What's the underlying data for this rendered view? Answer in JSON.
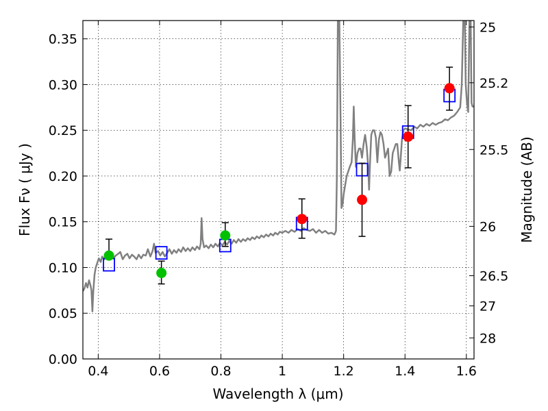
{
  "chart_data": {
    "type": "scatter",
    "xlabel": "Wavelength  λ (μm)",
    "ylabel": "Flux  Fν  ( μJy )",
    "y2label": "Magnitude (AB)",
    "xlim": [
      0.35,
      1.625
    ],
    "ylim": [
      0.0,
      0.37
    ],
    "grid": true,
    "x_ticks": [
      0.4,
      0.6,
      0.8,
      1.0,
      1.2,
      1.4,
      1.6
    ],
    "x_tick_labels": [
      "0.4",
      "0.6",
      "0.8",
      "1",
      "1.2",
      "1.4",
      "1.6"
    ],
    "y_ticks": [
      0.0,
      0.05,
      0.1,
      0.15,
      0.2,
      0.25,
      0.3,
      0.35
    ],
    "y_tick_labels": [
      "0.00",
      "0.05",
      "0.10",
      "0.15",
      "0.20",
      "0.25",
      "0.30",
      "0.35"
    ],
    "mag_ticks": [
      {
        "label": "25",
        "flux": 0.363
      },
      {
        "label": "25.2",
        "flux": 0.302
      },
      {
        "label": "25.5",
        "flux": 0.229
      },
      {
        "label": "26",
        "flux": 0.145
      },
      {
        "label": "26.5",
        "flux": 0.091
      },
      {
        "label": "27",
        "flux": 0.058
      },
      {
        "label": "28",
        "flux": 0.023
      }
    ],
    "colors": {
      "spectrum": "#808080",
      "green_points": "#00c000",
      "red_points": "#ff0000",
      "model_boxes": "#0000ff",
      "errorbars": "#000000"
    },
    "series": [
      {
        "marker": "green-circle",
        "points": [
          {
            "x": 0.435,
            "y": 0.113,
            "yerr_low": 0.113,
            "yerr_high": 0.131
          },
          {
            "x": 0.606,
            "y": 0.094,
            "yerr_low": 0.082,
            "yerr_high": 0.107
          },
          {
            "x": 0.814,
            "y": 0.135,
            "yerr_low": 0.123,
            "yerr_high": 0.149
          }
        ]
      },
      {
        "marker": "red-circle",
        "points": [
          {
            "x": 1.064,
            "y": 0.153,
            "yerr_low": 0.132,
            "yerr_high": 0.175
          },
          {
            "x": 1.26,
            "y": 0.174,
            "yerr_low": 0.134,
            "yerr_high": 0.214
          },
          {
            "x": 1.41,
            "y": 0.243,
            "yerr_low": 0.209,
            "yerr_high": 0.277
          },
          {
            "x": 1.545,
            "y": 0.296,
            "yerr_low": 0.272,
            "yerr_high": 0.319
          }
        ]
      },
      {
        "marker": "blue-square",
        "points": [
          {
            "x": 0.435,
            "y": 0.103
          },
          {
            "x": 0.606,
            "y": 0.116
          },
          {
            "x": 0.814,
            "y": 0.124
          },
          {
            "x": 1.064,
            "y": 0.148
          },
          {
            "x": 1.26,
            "y": 0.207
          },
          {
            "x": 1.41,
            "y": 0.248
          },
          {
            "x": 1.545,
            "y": 0.288
          }
        ]
      },
      {
        "marker": "spectrum-line",
        "points": [
          [
            0.35,
            0.074
          ],
          [
            0.355,
            0.077
          ],
          [
            0.36,
            0.083
          ],
          [
            0.365,
            0.078
          ],
          [
            0.37,
            0.086
          ],
          [
            0.375,
            0.08
          ],
          [
            0.378,
            0.075
          ],
          [
            0.381,
            0.052
          ],
          [
            0.384,
            0.074
          ],
          [
            0.388,
            0.092
          ],
          [
            0.392,
            0.1
          ],
          [
            0.397,
            0.105
          ],
          [
            0.402,
            0.11
          ],
          [
            0.408,
            0.106
          ],
          [
            0.413,
            0.112
          ],
          [
            0.42,
            0.109
          ],
          [
            0.427,
            0.114
          ],
          [
            0.435,
            0.111
          ],
          [
            0.442,
            0.115
          ],
          [
            0.45,
            0.11
          ],
          [
            0.457,
            0.113
          ],
          [
            0.465,
            0.115
          ],
          [
            0.472,
            0.117
          ],
          [
            0.48,
            0.109
          ],
          [
            0.487,
            0.113
          ],
          [
            0.495,
            0.115
          ],
          [
            0.502,
            0.11
          ],
          [
            0.51,
            0.114
          ],
          [
            0.517,
            0.112
          ],
          [
            0.525,
            0.109
          ],
          [
            0.532,
            0.114
          ],
          [
            0.54,
            0.11
          ],
          [
            0.547,
            0.114
          ],
          [
            0.555,
            0.113
          ],
          [
            0.562,
            0.12
          ],
          [
            0.57,
            0.112
          ],
          [
            0.577,
            0.118
          ],
          [
            0.582,
            0.126
          ],
          [
            0.587,
            0.116
          ],
          [
            0.595,
            0.118
          ],
          [
            0.602,
            0.113
          ],
          [
            0.61,
            0.117
          ],
          [
            0.617,
            0.112
          ],
          [
            0.625,
            0.116
          ],
          [
            0.632,
            0.12
          ],
          [
            0.64,
            0.115
          ],
          [
            0.647,
            0.119
          ],
          [
            0.655,
            0.116
          ],
          [
            0.662,
            0.12
          ],
          [
            0.67,
            0.117
          ],
          [
            0.677,
            0.122
          ],
          [
            0.685,
            0.118
          ],
          [
            0.692,
            0.121
          ],
          [
            0.7,
            0.118
          ],
          [
            0.707,
            0.122
          ],
          [
            0.715,
            0.119
          ],
          [
            0.722,
            0.123
          ],
          [
            0.73,
            0.12
          ],
          [
            0.734,
            0.126
          ],
          [
            0.737,
            0.154
          ],
          [
            0.74,
            0.131
          ],
          [
            0.745,
            0.122
          ],
          [
            0.752,
            0.124
          ],
          [
            0.76,
            0.121
          ],
          [
            0.767,
            0.125
          ],
          [
            0.775,
            0.122
          ],
          [
            0.782,
            0.126
          ],
          [
            0.79,
            0.123
          ],
          [
            0.797,
            0.127
          ],
          [
            0.805,
            0.124
          ],
          [
            0.812,
            0.128
          ],
          [
            0.82,
            0.125
          ],
          [
            0.827,
            0.129
          ],
          [
            0.835,
            0.126
          ],
          [
            0.842,
            0.13
          ],
          [
            0.85,
            0.127
          ],
          [
            0.857,
            0.131
          ],
          [
            0.865,
            0.128
          ],
          [
            0.872,
            0.131
          ],
          [
            0.88,
            0.129
          ],
          [
            0.887,
            0.132
          ],
          [
            0.895,
            0.13
          ],
          [
            0.902,
            0.133
          ],
          [
            0.91,
            0.131
          ],
          [
            0.917,
            0.134
          ],
          [
            0.925,
            0.132
          ],
          [
            0.932,
            0.135
          ],
          [
            0.94,
            0.133
          ],
          [
            0.947,
            0.136
          ],
          [
            0.955,
            0.134
          ],
          [
            0.962,
            0.137
          ],
          [
            0.97,
            0.135
          ],
          [
            0.977,
            0.138
          ],
          [
            0.985,
            0.136
          ],
          [
            0.992,
            0.139
          ],
          [
            1.0,
            0.138
          ],
          [
            1.01,
            0.14
          ],
          [
            1.02,
            0.138
          ],
          [
            1.03,
            0.141
          ],
          [
            1.04,
            0.139
          ],
          [
            1.05,
            0.142
          ],
          [
            1.06,
            0.14
          ],
          [
            1.07,
            0.143
          ],
          [
            1.08,
            0.141
          ],
          [
            1.09,
            0.14
          ],
          [
            1.1,
            0.142
          ],
          [
            1.11,
            0.138
          ],
          [
            1.12,
            0.141
          ],
          [
            1.13,
            0.138
          ],
          [
            1.14,
            0.14
          ],
          [
            1.15,
            0.137
          ],
          [
            1.16,
            0.138
          ],
          [
            1.17,
            0.136
          ],
          [
            1.175,
            0.14
          ],
          [
            1.178,
            0.2
          ],
          [
            1.181,
            0.37
          ],
          [
            1.186,
            0.37
          ],
          [
            1.19,
            0.26
          ],
          [
            1.193,
            0.165
          ],
          [
            1.197,
            0.17
          ],
          [
            1.2,
            0.18
          ],
          [
            1.205,
            0.19
          ],
          [
            1.21,
            0.2
          ],
          [
            1.215,
            0.205
          ],
          [
            1.22,
            0.21
          ],
          [
            1.226,
            0.215
          ],
          [
            1.23,
            0.24
          ],
          [
            1.233,
            0.276
          ],
          [
            1.236,
            0.24
          ],
          [
            1.24,
            0.21
          ],
          [
            1.245,
            0.225
          ],
          [
            1.25,
            0.23
          ],
          [
            1.255,
            0.23
          ],
          [
            1.26,
            0.22
          ],
          [
            1.265,
            0.235
          ],
          [
            1.27,
            0.245
          ],
          [
            1.275,
            0.232
          ],
          [
            1.28,
            0.21
          ],
          [
            1.283,
            0.185
          ],
          [
            1.286,
            0.215
          ],
          [
            1.29,
            0.245
          ],
          [
            1.295,
            0.25
          ],
          [
            1.3,
            0.25
          ],
          [
            1.305,
            0.242
          ],
          [
            1.31,
            0.215
          ],
          [
            1.315,
            0.24
          ],
          [
            1.32,
            0.248
          ],
          [
            1.325,
            0.245
          ],
          [
            1.33,
            0.235
          ],
          [
            1.335,
            0.22
          ],
          [
            1.34,
            0.225
          ],
          [
            1.345,
            0.23
          ],
          [
            1.35,
            0.2
          ],
          [
            1.355,
            0.205
          ],
          [
            1.36,
            0.225
          ],
          [
            1.365,
            0.23
          ],
          [
            1.37,
            0.235
          ],
          [
            1.375,
            0.235
          ],
          [
            1.38,
            0.215
          ],
          [
            1.383,
            0.206
          ],
          [
            1.386,
            0.22
          ],
          [
            1.39,
            0.24
          ],
          [
            1.395,
            0.25
          ],
          [
            1.4,
            0.252
          ],
          [
            1.41,
            0.251
          ],
          [
            1.42,
            0.25
          ],
          [
            1.43,
            0.254
          ],
          [
            1.44,
            0.252
          ],
          [
            1.45,
            0.256
          ],
          [
            1.46,
            0.254
          ],
          [
            1.47,
            0.257
          ],
          [
            1.48,
            0.255
          ],
          [
            1.49,
            0.258
          ],
          [
            1.5,
            0.256
          ],
          [
            1.51,
            0.258
          ],
          [
            1.52,
            0.259
          ],
          [
            1.53,
            0.262
          ],
          [
            1.54,
            0.261
          ],
          [
            1.55,
            0.264
          ],
          [
            1.56,
            0.266
          ],
          [
            1.57,
            0.27
          ],
          [
            1.58,
            0.275
          ],
          [
            1.585,
            0.3
          ],
          [
            1.59,
            0.37
          ],
          [
            1.595,
            0.37
          ],
          [
            1.598,
            0.3
          ],
          [
            1.602,
            0.28
          ],
          [
            1.606,
            0.27
          ],
          [
            1.61,
            0.37
          ],
          [
            1.614,
            0.37
          ],
          [
            1.617,
            0.28
          ],
          [
            1.62,
            0.276
          ],
          [
            1.625,
            0.276
          ]
        ]
      }
    ]
  }
}
